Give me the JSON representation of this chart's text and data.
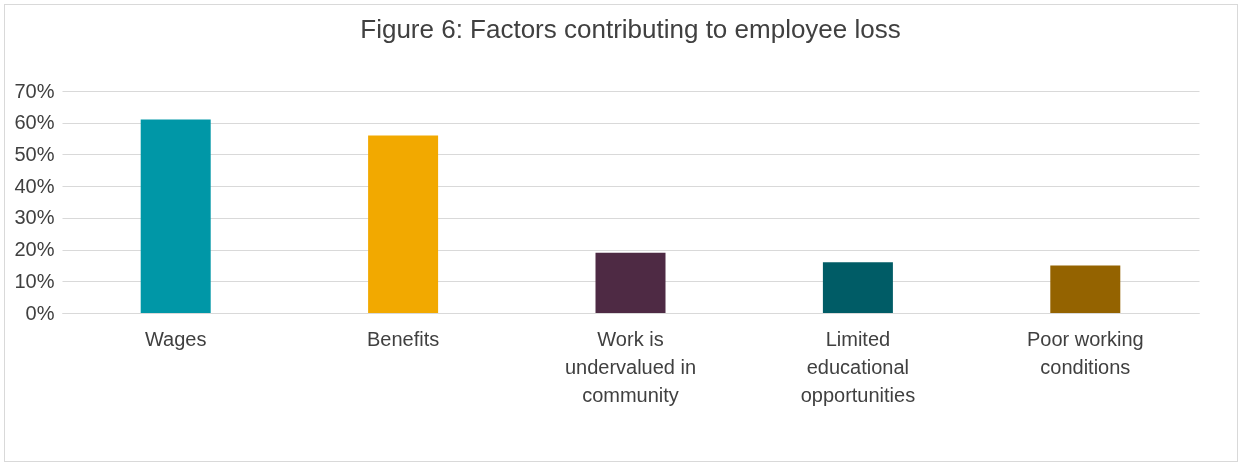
{
  "chart_data": {
    "type": "bar",
    "title": "Figure 6: Factors contributing to employee loss",
    "categories": [
      "Wages",
      "Benefits",
      "Work is undervalued in community",
      "Limited educational opportunities",
      "Poor working conditions"
    ],
    "values": [
      61,
      56,
      19,
      16,
      15
    ],
    "colors": [
      "#0097a7",
      "#f2a900",
      "#4e2a44",
      "#005c66",
      "#946300"
    ],
    "ylim": [
      0,
      70
    ],
    "yticks": [
      {
        "value": 0,
        "label": "0%"
      },
      {
        "value": 10,
        "label": "10%"
      },
      {
        "value": 20,
        "label": "20%"
      },
      {
        "value": 30,
        "label": "30%"
      },
      {
        "value": 40,
        "label": "40%"
      },
      {
        "value": 50,
        "label": "50%"
      },
      {
        "value": 60,
        "label": "60%"
      },
      {
        "value": 70,
        "label": "70%"
      }
    ],
    "grid": "y"
  }
}
